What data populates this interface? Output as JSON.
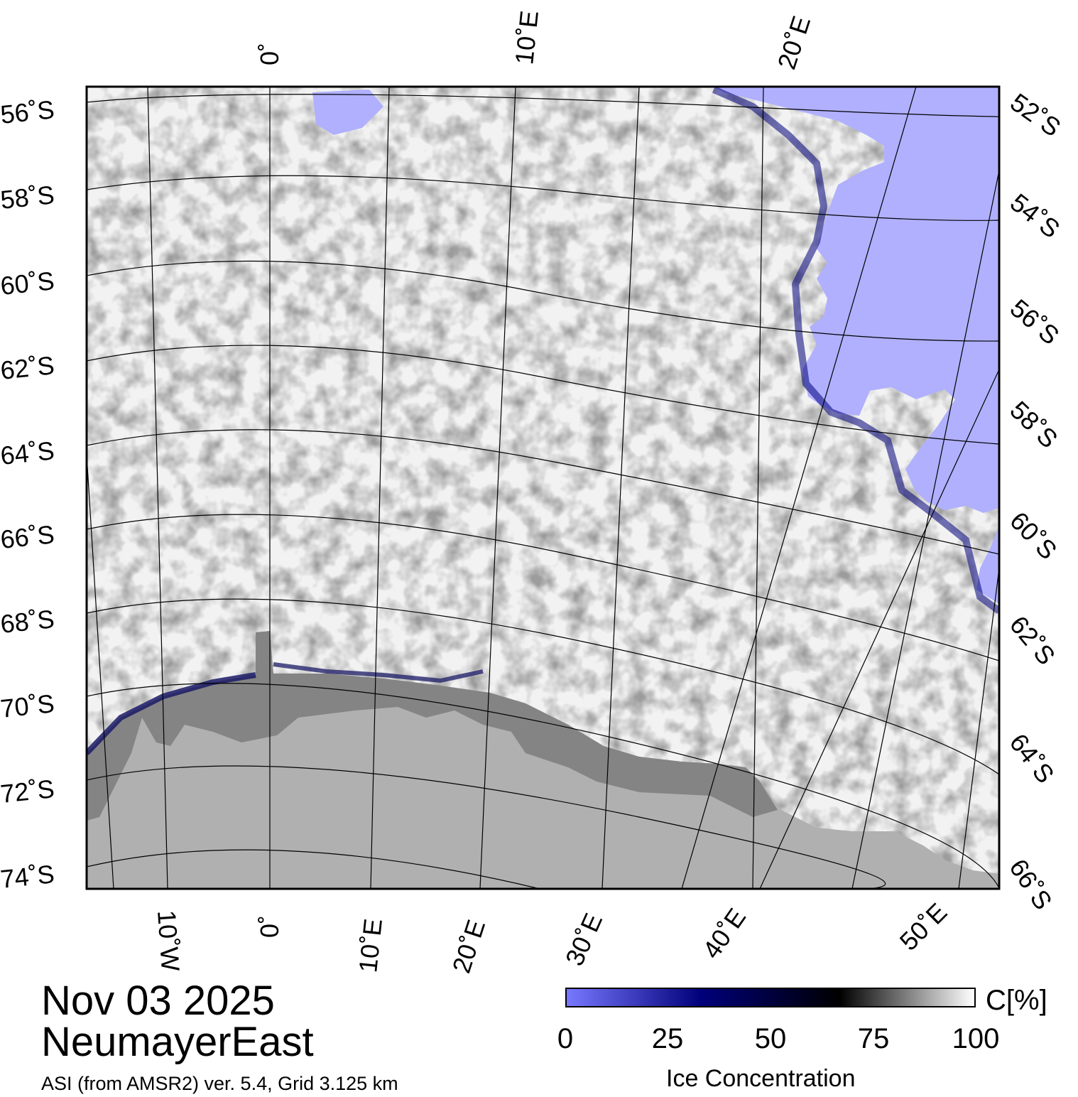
{
  "map": {
    "lat_labels_left": [
      "56˚S",
      "58˚S",
      "60˚S",
      "62˚S",
      "64˚S",
      "66˚S",
      "68˚S",
      "70˚S",
      "72˚S",
      "74˚S"
    ],
    "lat_labels_right": [
      "52˚S",
      "54˚S",
      "56˚S",
      "58˚S",
      "60˚S",
      "62˚S",
      "64˚S",
      "66˚S"
    ],
    "lon_labels_top": [
      "0˚",
      "10˚E",
      "20˚E"
    ],
    "lon_labels_bottom": [
      "10˚W",
      "0˚",
      "10˚E",
      "20˚E",
      "30˚E",
      "40˚E",
      "50˚E"
    ],
    "colors": {
      "open_water": "#b0b0ff",
      "ice_full": "#ffffff",
      "ice_mid": "#000000",
      "ice_low": "#00007a",
      "land": "#b0b0b0",
      "ice_shelf": "#848484"
    }
  },
  "title": {
    "date": "Nov 03 2025",
    "region": "NeumayerEast",
    "source": "ASI (from AMSR2) ver. 5.4,  Grid 3.125 km"
  },
  "colorbar": {
    "unit": "C[%]",
    "ticks": [
      "0",
      "25",
      "50",
      "75",
      "100"
    ],
    "label": "Ice Concentration",
    "stops": [
      "#7878ff",
      "#00007a",
      "#000000",
      "#ffffff"
    ]
  }
}
